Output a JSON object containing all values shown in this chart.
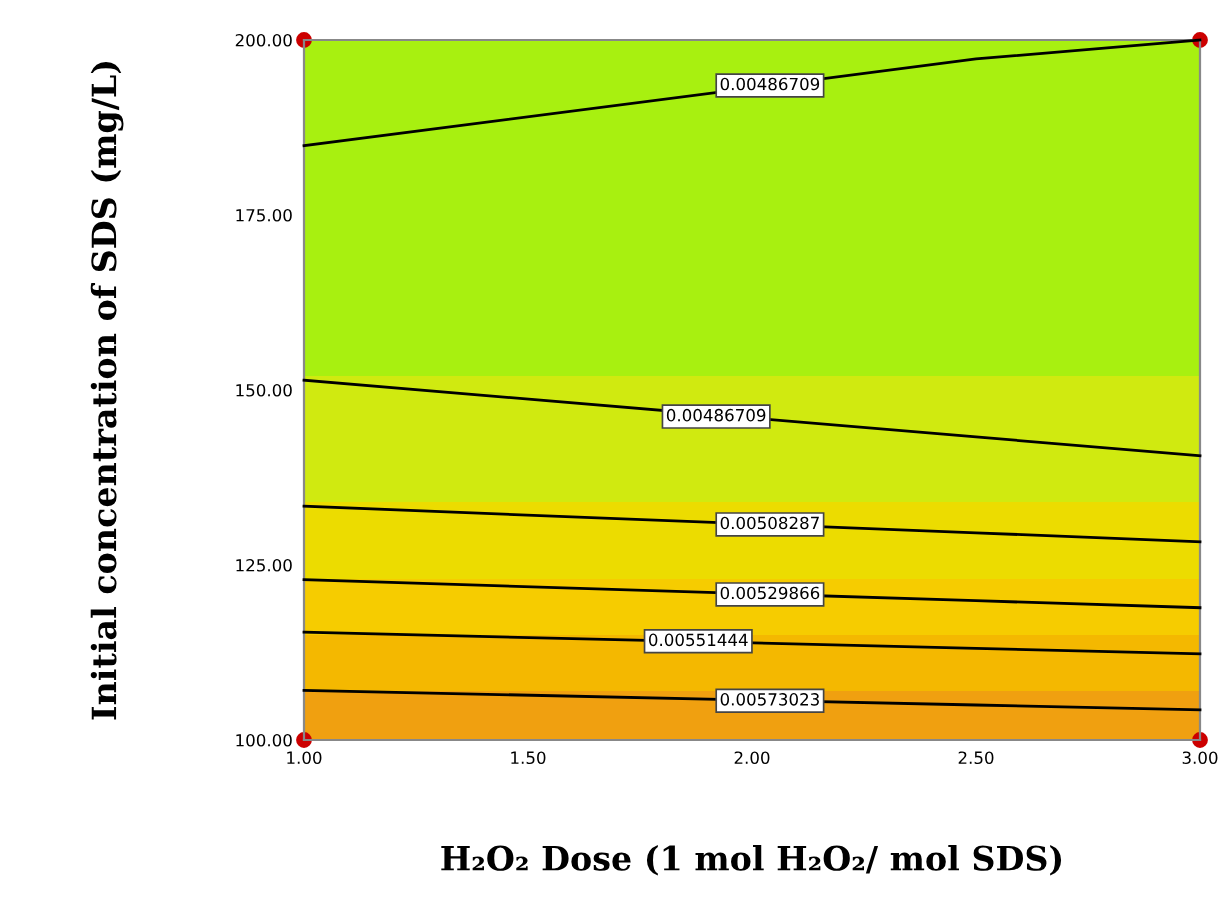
{
  "chart_data": {
    "type": "line",
    "xlabel": "H₂O₂ Dose (1 mol H₂O₂/ mol SDS)",
    "ylabel": "Initial concentration of SDS (mg/L)",
    "xlim": [
      1,
      3
    ],
    "ylim": [
      100,
      200
    ],
    "xticks": [
      {
        "value": 1,
        "label": "1.00"
      },
      {
        "value": 1.5,
        "label": "1.50"
      },
      {
        "value": 2,
        "label": "2.00"
      },
      {
        "value": 2.5,
        "label": "2.50"
      },
      {
        "value": 3,
        "label": "3.00"
      }
    ],
    "yticks": [
      {
        "value": 100,
        "label": "100.00"
      },
      {
        "value": 125,
        "label": "125.00"
      },
      {
        "value": 150,
        "label": "150.00"
      },
      {
        "value": 175,
        "label": "175.00"
      },
      {
        "value": 200,
        "label": "200.00"
      }
    ],
    "grid": false,
    "bands": [
      {
        "axis": "y",
        "from": 100,
        "to": 107,
        "color": "#f0a010"
      },
      {
        "axis": "y",
        "from": 107,
        "to": 115,
        "color": "#f4b800"
      },
      {
        "axis": "y",
        "from": 115,
        "to": 123,
        "color": "#f6cc00"
      },
      {
        "axis": "y",
        "from": 123,
        "to": 134,
        "color": "#ecdc00"
      },
      {
        "axis": "y",
        "from": 134,
        "to": 152,
        "color": "#d0ea10"
      },
      {
        "axis": "y",
        "from": 152,
        "to": 200,
        "color": "#a8f010"
      }
    ],
    "series": [
      {
        "color": "#000000",
        "x": [
          1,
          2.5,
          3
        ],
        "values": [
          184.9,
          197.3,
          200
        ]
      },
      {
        "color": "#000000",
        "x": [
          1,
          2.5,
          3
        ],
        "values": [
          151.4,
          143.3,
          140.6
        ]
      },
      {
        "color": "#000000",
        "x": [
          1,
          2.5,
          3
        ],
        "values": [
          133.4,
          129.6,
          128.3
        ]
      },
      {
        "color": "#000000",
        "x": [
          1,
          2.5,
          3
        ],
        "values": [
          122.9,
          119.9,
          118.9
        ]
      },
      {
        "color": "#000000",
        "x": [
          1,
          2.5,
          3
        ],
        "values": [
          115.4,
          113.1,
          112.3
        ]
      },
      {
        "color": "#000000",
        "x": [
          1,
          2.5,
          3
        ],
        "values": [
          107.1,
          105.0,
          104.3
        ]
      },
      {
        "type": "scatter",
        "color": "#cc0000",
        "marker": "circle",
        "x": [
          1,
          1,
          3,
          3
        ],
        "values": [
          100,
          200,
          100,
          200
        ]
      }
    ],
    "annotations": [
      {
        "text": "0.00486709",
        "x": 2.04,
        "y": 193.5
      },
      {
        "text": "0.00486709",
        "x": 1.92,
        "y": 146.2
      },
      {
        "text": "0.00508287",
        "x": 2.04,
        "y": 130.8
      },
      {
        "text": "0.00529866",
        "x": 2.04,
        "y": 120.8
      },
      {
        "text": "0.00551444",
        "x": 1.88,
        "y": 114.1
      },
      {
        "text": "0.00573023",
        "x": 2.04,
        "y": 105.6
      }
    ]
  }
}
